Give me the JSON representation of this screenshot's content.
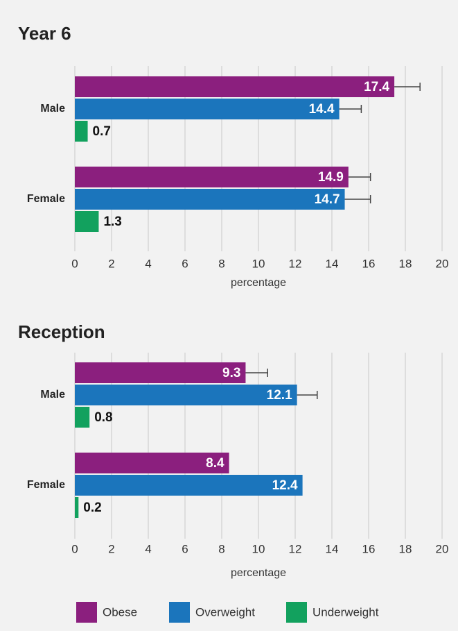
{
  "chart_data": [
    {
      "type": "bar",
      "orientation": "horizontal",
      "title": "Year 6",
      "categories": [
        "Male",
        "Female"
      ],
      "series": [
        {
          "values": [
            17.4,
            14.9
          ],
          "errors": [
            1.4,
            1.2
          ]
        },
        {
          "values": [
            14.4,
            14.7
          ],
          "errors": [
            1.2,
            1.4
          ]
        },
        {
          "values": [
            0.7,
            1.3
          ],
          "errors": [
            null,
            null
          ]
        }
      ],
      "xlim": [
        0,
        20
      ],
      "xticks": [
        0,
        2,
        4,
        6,
        8,
        10,
        12,
        14,
        16,
        18,
        20
      ],
      "x_label": "percentage",
      "grid": true
    },
    {
      "type": "bar",
      "orientation": "horizontal",
      "title": "Reception",
      "categories": [
        "Male",
        "Female"
      ],
      "series": [
        {
          "values": [
            9.3,
            8.4
          ],
          "errors": [
            1.2,
            null
          ]
        },
        {
          "values": [
            12.1,
            12.4
          ],
          "errors": [
            1.1,
            null
          ]
        },
        {
          "values": [
            0.8,
            0.2
          ],
          "errors": [
            null,
            null
          ]
        }
      ],
      "xlim": [
        0,
        20
      ],
      "xticks": [
        0,
        2,
        4,
        6,
        8,
        10,
        12,
        14,
        16,
        18,
        20
      ],
      "x_label": "percentage",
      "grid": true
    }
  ],
  "legend": [
    {
      "name": "Obese",
      "color": "#8b1f7e"
    },
    {
      "name": "Overweight",
      "color": "#1b75bc"
    },
    {
      "name": "Underweight",
      "color": "#12a15e"
    }
  ]
}
